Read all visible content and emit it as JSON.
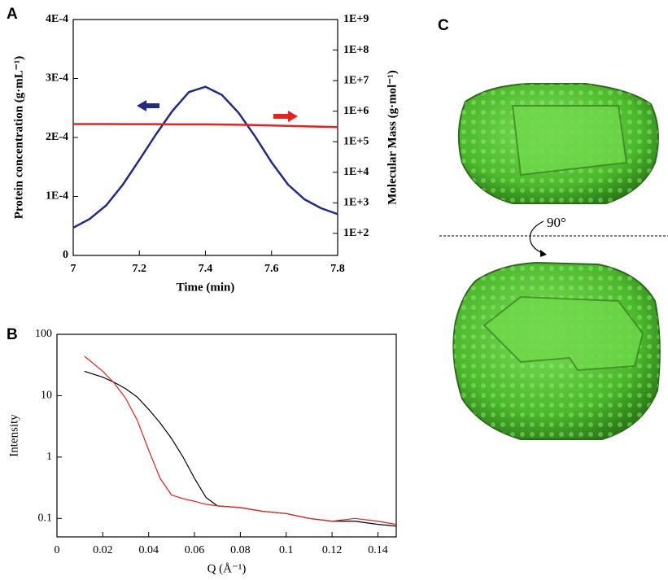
{
  "panels": {
    "a": "A",
    "b": "B",
    "c": "C"
  },
  "rotation_label": "90°",
  "chart_data": [
    {
      "type": "line",
      "xlabel": "Time (min)",
      "ylabel": "Protein concentration (g·mL⁻¹)",
      "y2label": "Molecular Mass (g·mol⁻¹)",
      "x": [
        7,
        7.05,
        7.1,
        7.15,
        7.2,
        7.25,
        7.3,
        7.35,
        7.4,
        7.45,
        7.5,
        7.55,
        7.6,
        7.65,
        7.7,
        7.75,
        7.8
      ],
      "xlim": [
        7,
        7.8
      ],
      "xticks": [
        7,
        7.2,
        7.4,
        7.6,
        7.8
      ],
      "ylim": [
        0,
        0.0004
      ],
      "yticks": [
        0,
        {
          "value": 0.0001,
          "label": "1E-4"
        },
        {
          "value": 0.0002,
          "label": "2E-4"
        },
        {
          "value": 0.0003,
          "label": "3E-4"
        },
        {
          "value": 0.0004,
          "label": "4E-4"
        }
      ],
      "y2lim": [
        19,
        1000000000
      ],
      "y2scale": "log",
      "y2ticks": [
        {
          "value": 100,
          "label": "1E+2"
        },
        {
          "value": 1000,
          "label": "1E+3"
        },
        {
          "value": 10000,
          "label": "1E+4"
        },
        {
          "value": 100000,
          "label": "1E+5"
        },
        {
          "value": 1000000,
          "label": "1E+6"
        },
        {
          "value": 10000000,
          "label": "1E+7"
        },
        {
          "value": 100000000,
          "label": "1E+8"
        },
        {
          "value": 1000000000,
          "label": "1E+9"
        }
      ],
      "series": [
        {
          "color": "#1f2a8c",
          "values": [
            4.7e-05,
            6.2e-05,
            8.5e-05,
            0.00012,
            0.000162,
            0.000205,
            0.000245,
            0.000277,
            0.000286,
            0.000272,
            0.000242,
            0.000202,
            0.000158,
            0.00012,
            9.5e-05,
            8e-05,
            7e-05
          ]
        },
        {
          "color": "#e8201e",
          "axis": "y2",
          "values": [
            380000,
            380000,
            380000,
            375000,
            375000,
            375000,
            370000,
            370000,
            370000,
            365000,
            360000,
            350000,
            340000,
            330000,
            320000,
            310000,
            300000
          ]
        }
      ]
    },
    {
      "type": "line",
      "xlabel": "Q (Å⁻¹)",
      "ylabel": "Intensity",
      "x": [
        0.012,
        0.02,
        0.025,
        0.03,
        0.035,
        0.04,
        0.045,
        0.05,
        0.055,
        0.06,
        0.065,
        0.07,
        0.08,
        0.09,
        0.1,
        0.11,
        0.12,
        0.13,
        0.14,
        0.148
      ],
      "xlim": [
        0,
        0.148
      ],
      "xticks": [
        0,
        0.02,
        0.04,
        0.06,
        0.08,
        0.1,
        0.12,
        0.14
      ],
      "ylim": [
        0.05,
        100
      ],
      "yscale": "log",
      "yticks": [
        0.1,
        1,
        10,
        100
      ],
      "series": [
        {
          "color": "#000000",
          "values": [
            25,
            20,
            16.5,
            13,
            9.5,
            6,
            3.6,
            2,
            1,
            0.45,
            0.22,
            0.16,
            0.15,
            0.13,
            0.12,
            0.1,
            0.09,
            0.09,
            0.08,
            0.075
          ]
        },
        {
          "color": "#e8201e",
          "values": [
            44,
            25,
            16,
            9,
            4,
            1.3,
            0.45,
            0.24,
            0.21,
            0.19,
            0.17,
            0.16,
            0.15,
            0.13,
            0.12,
            0.1,
            0.09,
            0.1,
            0.09,
            0.08
          ]
        }
      ]
    }
  ]
}
